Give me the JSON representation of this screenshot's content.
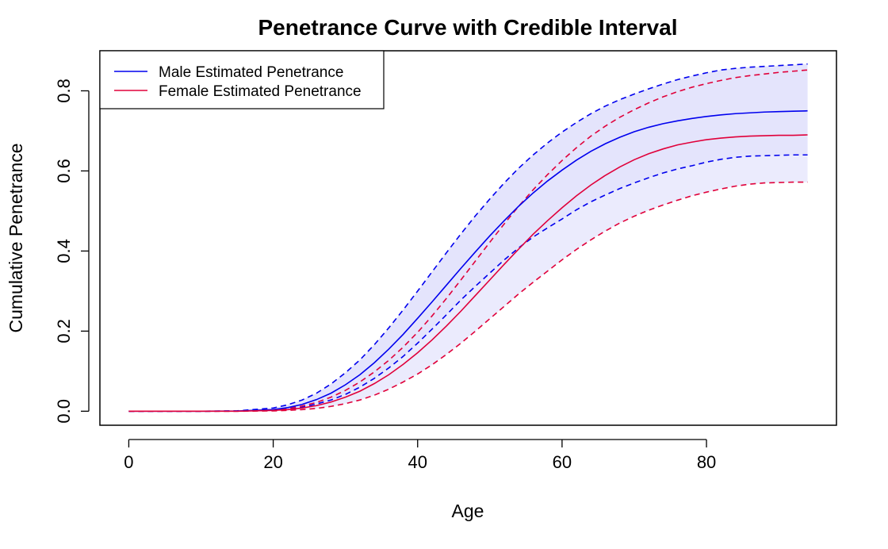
{
  "chart_data": {
    "type": "line",
    "title": "Penetrance Curve with Credible Interval",
    "xlabel": "Age",
    "ylabel": "Cumulative Penetrance",
    "xlim": [
      -4,
      98
    ],
    "ylim": [
      -0.035,
      0.9
    ],
    "x_ticks": [
      0,
      20,
      40,
      60,
      80
    ],
    "x_tick_labels": [
      "0",
      "20",
      "40",
      "60",
      "80"
    ],
    "y_ticks": [
      0.0,
      0.2,
      0.4,
      0.6,
      0.8
    ],
    "y_tick_labels": [
      "0.0",
      "0.2",
      "0.4",
      "0.6",
      "0.8"
    ],
    "grid": false,
    "legend_position": "top-left",
    "colors": {
      "male": "#0000ee",
      "female": "#e0003a",
      "male_band": "#e4e4fc",
      "female_band": "#e4e4fc",
      "overlap_band": "#cdcdfb"
    },
    "x": [
      0,
      5,
      10,
      15,
      20,
      22,
      24,
      26,
      28,
      30,
      32,
      34,
      36,
      38,
      40,
      42,
      44,
      46,
      48,
      50,
      52,
      54,
      56,
      58,
      60,
      62,
      64,
      66,
      68,
      70,
      72,
      74,
      76,
      78,
      80,
      82,
      84,
      86,
      88,
      90,
      92,
      94
    ],
    "series": [
      {
        "name": "Male Estimated Penetrance",
        "color": "#0000ee",
        "values": [
          0,
          0,
          0,
          0.0005,
          0.004,
          0.009,
          0.017,
          0.029,
          0.045,
          0.066,
          0.091,
          0.121,
          0.155,
          0.192,
          0.232,
          0.273,
          0.315,
          0.357,
          0.398,
          0.438,
          0.476,
          0.512,
          0.545,
          0.575,
          0.602,
          0.627,
          0.649,
          0.668,
          0.684,
          0.698,
          0.709,
          0.718,
          0.725,
          0.731,
          0.736,
          0.74,
          0.743,
          0.745,
          0.747,
          0.748,
          0.749,
          0.75
        ],
        "lower": [
          0,
          0,
          0,
          0.0003,
          0.002,
          0.005,
          0.01,
          0.018,
          0.028,
          0.042,
          0.06,
          0.082,
          0.108,
          0.137,
          0.17,
          0.205,
          0.241,
          0.278,
          0.312,
          0.345,
          0.378,
          0.408,
          0.435,
          0.458,
          0.48,
          0.503,
          0.523,
          0.54,
          0.556,
          0.57,
          0.583,
          0.595,
          0.605,
          0.613,
          0.622,
          0.629,
          0.634,
          0.637,
          0.638,
          0.639,
          0.64,
          0.64
        ],
        "upper": [
          0,
          0,
          0,
          0.001,
          0.008,
          0.016,
          0.028,
          0.045,
          0.068,
          0.096,
          0.128,
          0.166,
          0.208,
          0.253,
          0.3,
          0.348,
          0.396,
          0.443,
          0.488,
          0.53,
          0.57,
          0.607,
          0.64,
          0.67,
          0.697,
          0.721,
          0.743,
          0.762,
          0.778,
          0.792,
          0.805,
          0.817,
          0.828,
          0.837,
          0.845,
          0.852,
          0.856,
          0.859,
          0.861,
          0.863,
          0.865,
          0.867
        ]
      },
      {
        "name": "Female Estimated Penetrance",
        "color": "#e0003a",
        "values": [
          0,
          0,
          0,
          0,
          0.002,
          0.004,
          0.008,
          0.014,
          0.023,
          0.035,
          0.05,
          0.069,
          0.091,
          0.117,
          0.146,
          0.178,
          0.213,
          0.25,
          0.289,
          0.328,
          0.367,
          0.405,
          0.442,
          0.476,
          0.508,
          0.538,
          0.565,
          0.589,
          0.61,
          0.628,
          0.643,
          0.655,
          0.665,
          0.672,
          0.678,
          0.682,
          0.685,
          0.687,
          0.688,
          0.689,
          0.689,
          0.69
        ],
        "lower": [
          0,
          0,
          0,
          0,
          0.0008,
          0.002,
          0.004,
          0.007,
          0.012,
          0.019,
          0.028,
          0.04,
          0.055,
          0.073,
          0.093,
          0.116,
          0.142,
          0.17,
          0.2,
          0.231,
          0.262,
          0.293,
          0.322,
          0.35,
          0.378,
          0.404,
          0.428,
          0.45,
          0.47,
          0.487,
          0.502,
          0.515,
          0.527,
          0.538,
          0.547,
          0.555,
          0.562,
          0.567,
          0.57,
          0.571,
          0.572,
          0.572
        ],
        "upper": [
          0,
          0,
          0,
          0,
          0.003,
          0.007,
          0.013,
          0.022,
          0.035,
          0.052,
          0.073,
          0.098,
          0.127,
          0.16,
          0.197,
          0.238,
          0.282,
          0.328,
          0.375,
          0.422,
          0.468,
          0.512,
          0.553,
          0.591,
          0.626,
          0.658,
          0.687,
          0.712,
          0.734,
          0.753,
          0.77,
          0.785,
          0.798,
          0.809,
          0.818,
          0.826,
          0.833,
          0.838,
          0.842,
          0.846,
          0.849,
          0.852
        ]
      }
    ]
  }
}
